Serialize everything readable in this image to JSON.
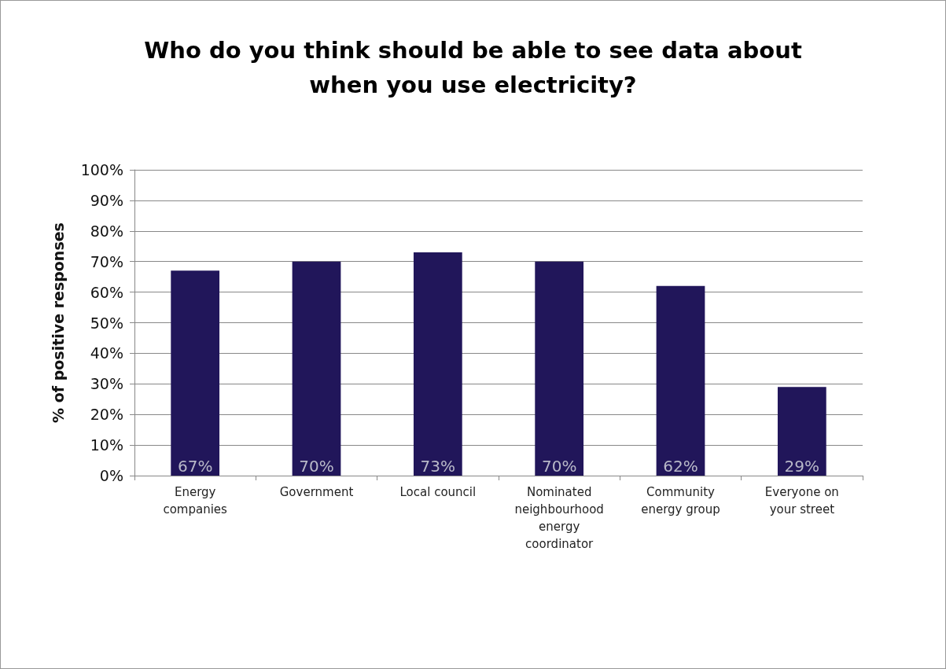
{
  "chart_data": {
    "type": "bar",
    "title": "Who do you think should be able to see data about\nwhen you use electricity?",
    "ylabel": "% of positive responses",
    "categories": [
      "Energy\ncompanies",
      "Government",
      "Local council",
      "Nominated\nneighbourhood\nenergy\ncoordinator",
      "Community\nenergy group",
      "Everyone on\nyour street"
    ],
    "values": [
      67,
      70,
      73,
      70,
      62,
      29
    ],
    "value_labels": [
      "67%",
      "70%",
      "73%",
      "70%",
      "62%",
      "29%"
    ],
    "color": "#21165a",
    "ylim": [
      0,
      100
    ],
    "yticks": [
      {
        "value": 0,
        "label": "0%"
      },
      {
        "value": 10,
        "label": "10%"
      },
      {
        "value": 20,
        "label": "20%"
      },
      {
        "value": 30,
        "label": "30%"
      },
      {
        "value": 40,
        "label": "40%"
      },
      {
        "value": 50,
        "label": "50%"
      },
      {
        "value": 60,
        "label": "60%"
      },
      {
        "value": 70,
        "label": "70%"
      },
      {
        "value": 80,
        "label": "80%"
      },
      {
        "value": 90,
        "label": "90%"
      },
      {
        "value": 100,
        "label": "100%"
      }
    ],
    "grid": "y"
  }
}
